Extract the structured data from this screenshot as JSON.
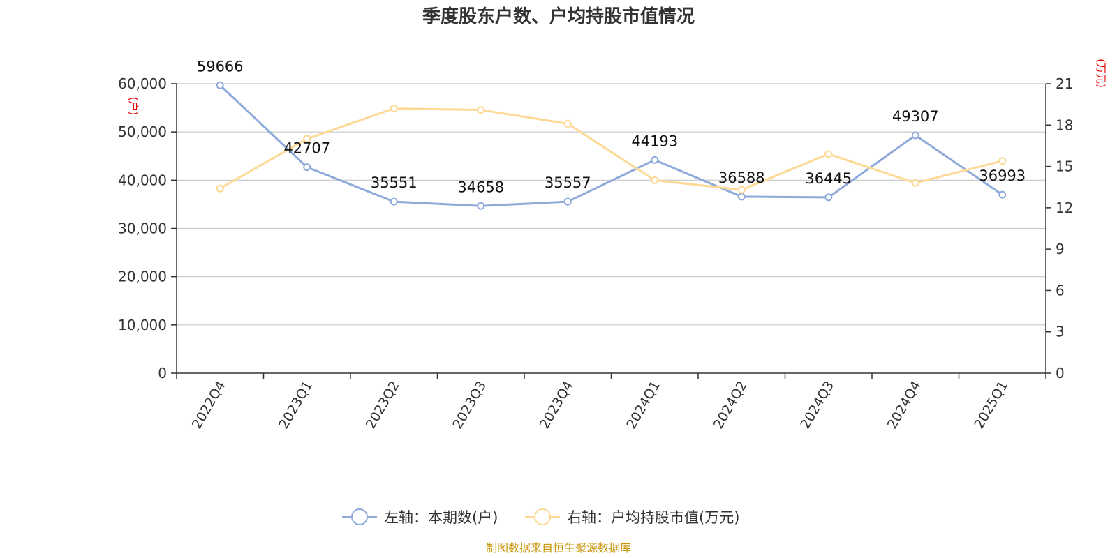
{
  "chart_data": {
    "type": "line",
    "title": "季度股东户数、户均持股市值情况",
    "categories": [
      "2022Q4",
      "2023Q1",
      "2023Q2",
      "2023Q3",
      "2023Q4",
      "2024Q1",
      "2024Q2",
      "2024Q3",
      "2024Q4",
      "2025Q1"
    ],
    "left_axis": {
      "unit": "(户)",
      "ylim": [
        0,
        60000
      ],
      "ticks": [
        "0",
        "10,000",
        "20,000",
        "30,000",
        "40,000",
        "50,000",
        "60,000"
      ]
    },
    "right_axis": {
      "unit": "(万元)",
      "ylim": [
        0,
        21
      ],
      "ticks": [
        "0",
        "3",
        "6",
        "9",
        "12",
        "15",
        "18",
        "21"
      ]
    },
    "series": [
      {
        "name": "左轴：本期数(户)",
        "axis": "left",
        "color": "#8eaadb",
        "values": [
          59666,
          42707,
          35551,
          34658,
          35557,
          44193,
          36588,
          36445,
          49307,
          36993
        ],
        "data_labels": [
          "59666",
          "42707",
          "35551",
          "34658",
          "35557",
          "44193",
          "36588",
          "36445",
          "49307",
          "36993"
        ]
      },
      {
        "name": "右轴：户均持股市值(万元)",
        "axis": "right",
        "color": "#fdd995",
        "values": [
          13.4,
          17.0,
          19.2,
          19.1,
          18.1,
          14.0,
          13.3,
          15.9,
          13.8,
          15.4
        ]
      }
    ],
    "grid": true,
    "legend_position": "bottom-center",
    "source": "制图数据来自恒生聚源数据库"
  }
}
